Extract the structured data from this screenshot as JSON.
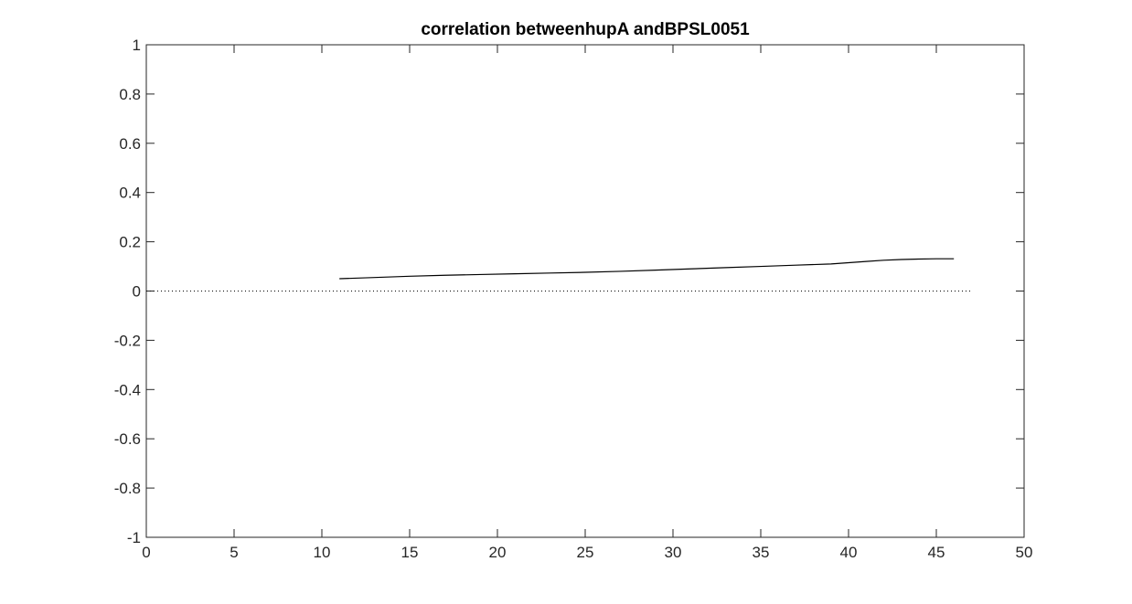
{
  "chart_data": {
    "type": "line",
    "title": "correlation betweenhupA andBPSL0051",
    "xlabel": "",
    "ylabel": "",
    "xlim": [
      0,
      50
    ],
    "ylim": [
      -1,
      1
    ],
    "x_ticks": [
      0,
      5,
      10,
      15,
      20,
      25,
      30,
      35,
      40,
      45,
      50
    ],
    "y_ticks": [
      -1,
      -0.8,
      -0.6,
      -0.4,
      -0.2,
      0,
      0.2,
      0.4,
      0.6,
      0.8,
      1
    ],
    "x_tick_labels": [
      "0",
      "5",
      "10",
      "15",
      "20",
      "25",
      "30",
      "35",
      "40",
      "45",
      "50"
    ],
    "y_tick_labels": [
      "-1",
      "-0.8",
      "-0.6",
      "-0.4",
      "-0.2",
      "0",
      "0.2",
      "0.4",
      "0.6",
      "0.8",
      "1"
    ],
    "grid": false,
    "series": [
      {
        "style": "solid",
        "color": "#000000",
        "x": [
          11,
          13,
          15,
          17,
          19,
          21,
          23,
          25,
          27,
          29,
          31,
          33,
          35,
          37,
          39,
          40,
          41,
          42,
          43,
          44,
          45,
          46
        ],
        "y": [
          0.05,
          0.055,
          0.06,
          0.064,
          0.067,
          0.07,
          0.073,
          0.076,
          0.08,
          0.085,
          0.09,
          0.095,
          0.1,
          0.105,
          0.11,
          0.115,
          0.12,
          0.125,
          0.128,
          0.13,
          0.131,
          0.131
        ]
      },
      {
        "style": "dotted",
        "color": "#000000",
        "x": [
          0,
          47
        ],
        "y": [
          0,
          0
        ]
      }
    ]
  }
}
